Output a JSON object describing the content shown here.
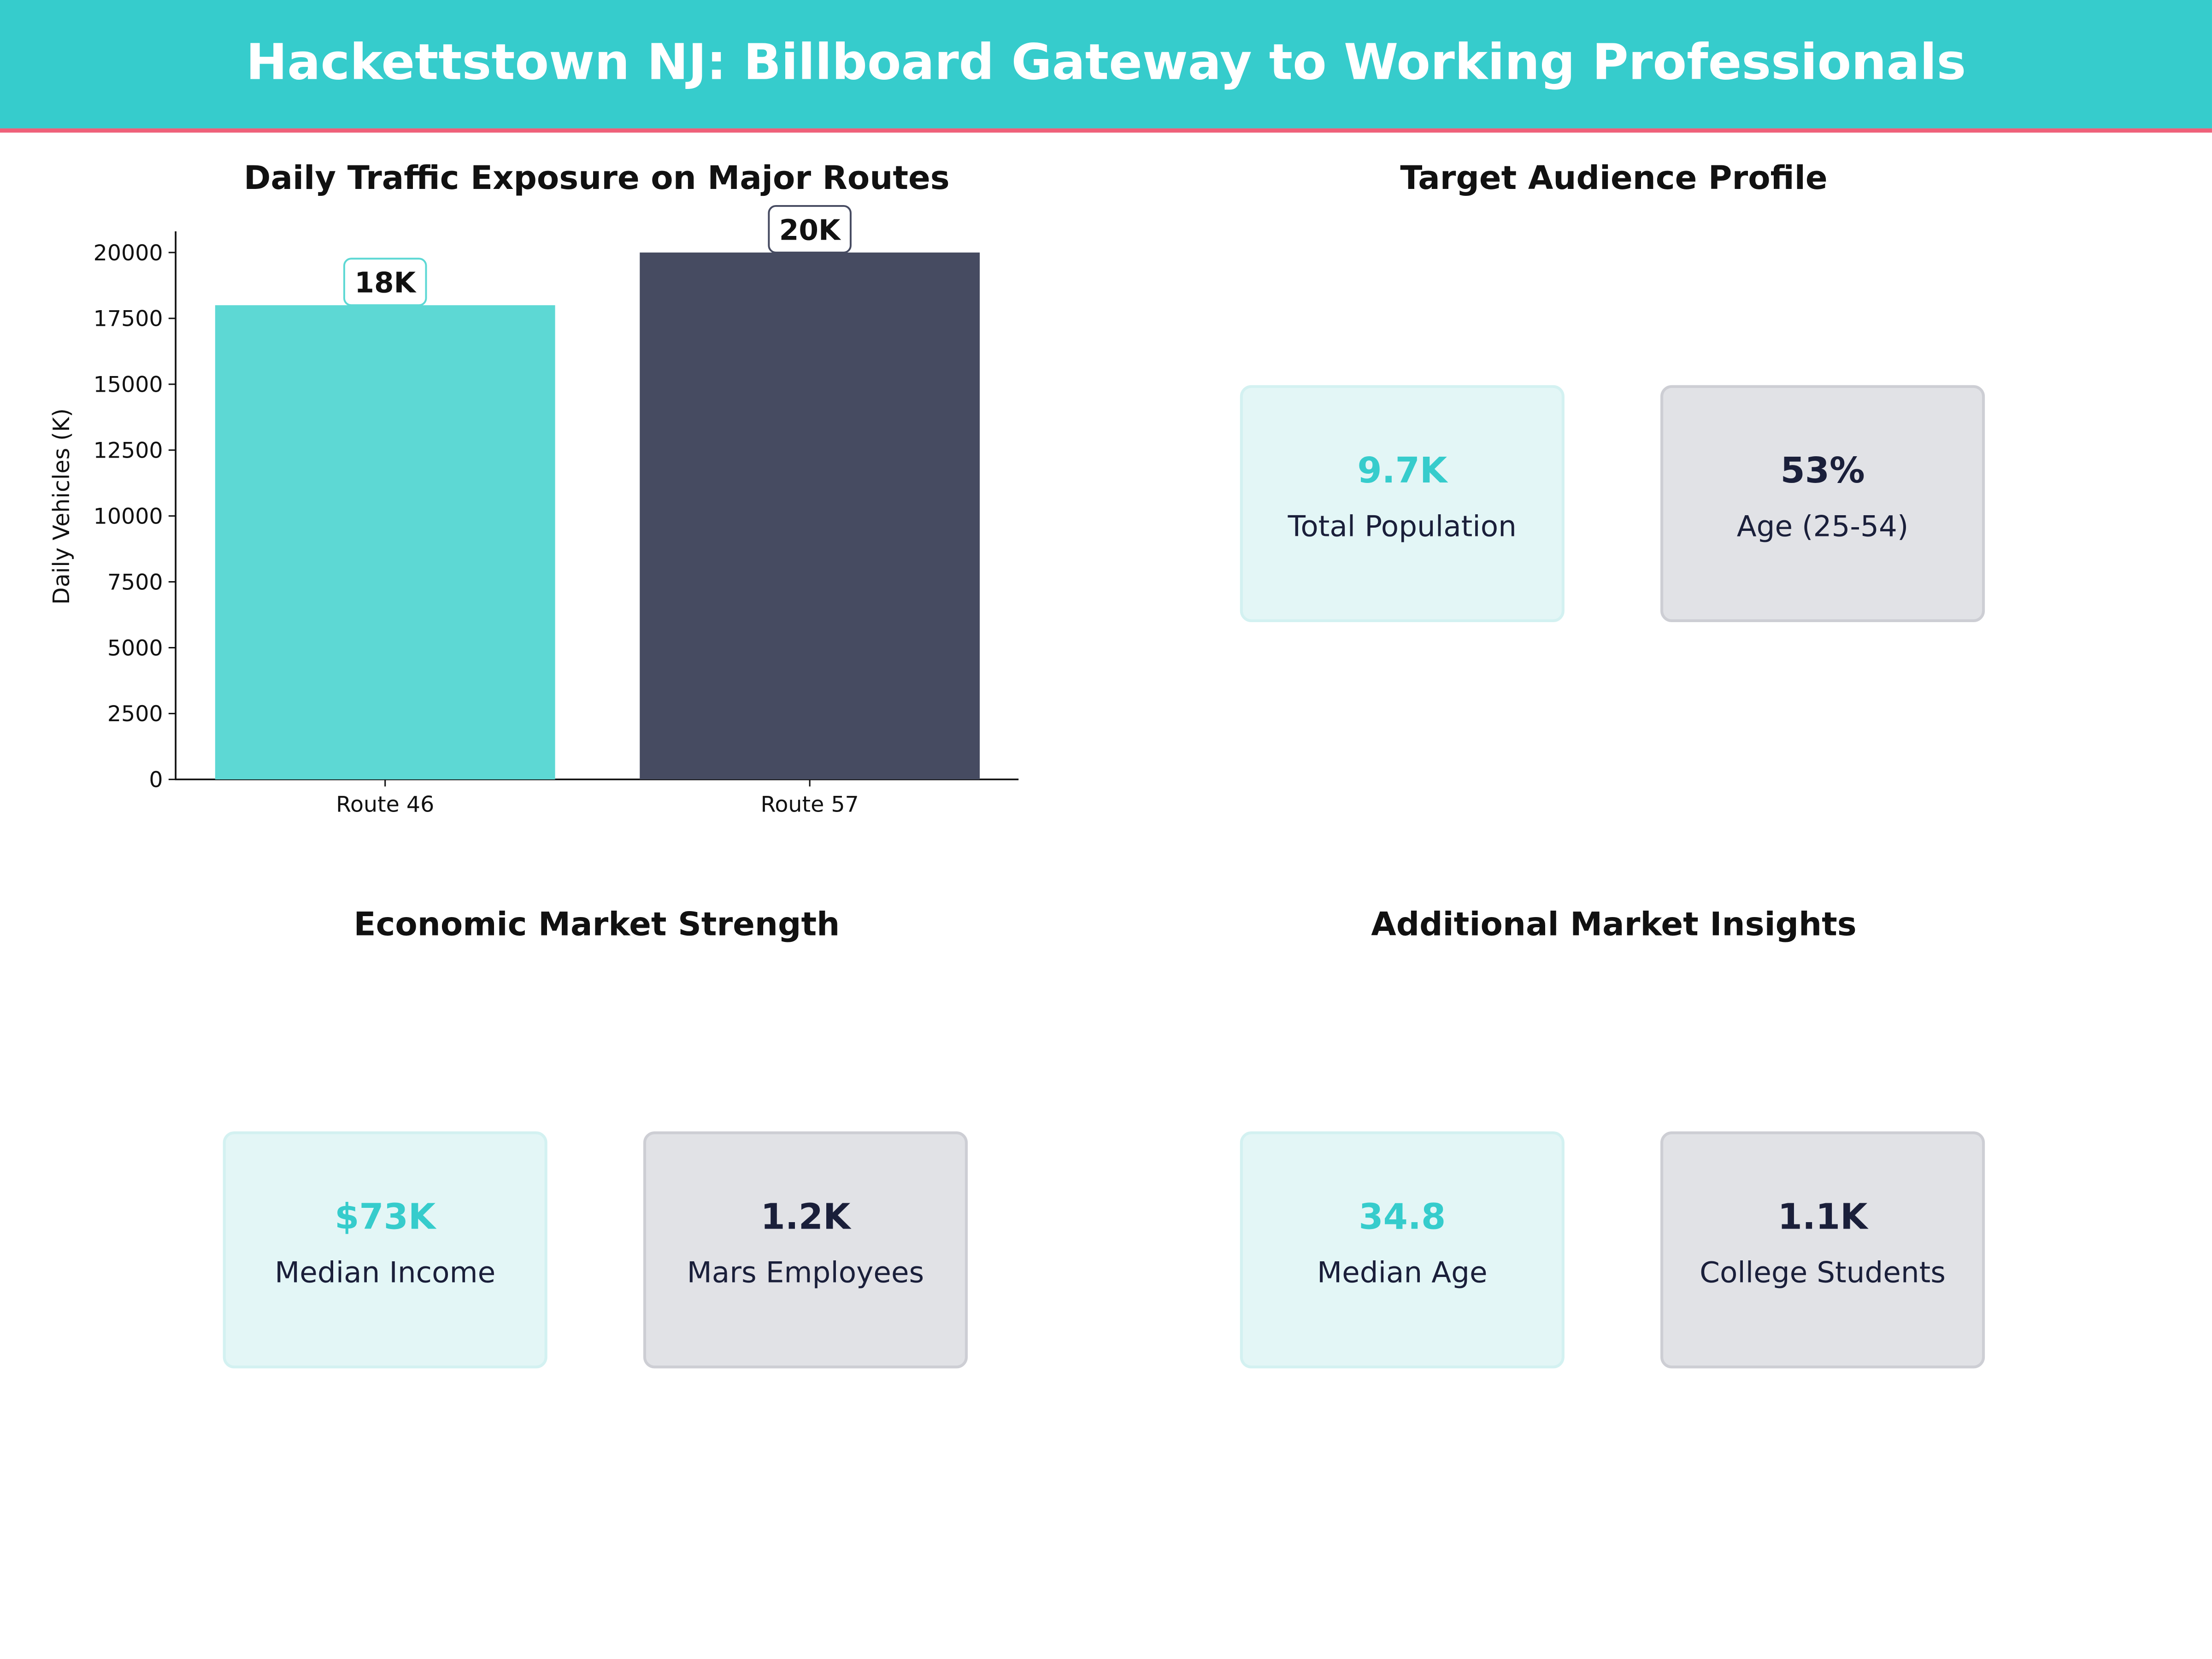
{
  "header": {
    "title": "Hackettstown NJ: Billboard Gateway to Working Professionals"
  },
  "colors": {
    "accent_teal": "#36cccc",
    "bar_teal": "#5dd8d4",
    "bar_navy": "#464b61",
    "accent_pink": "#ef6079",
    "text_navy": "#1a1f3a",
    "card_teal_bg": "#e3f6f6",
    "card_navy_bg": "#e1e2e6"
  },
  "panels": {
    "traffic": {
      "title": "Daily Traffic Exposure on Major Routes"
    },
    "audience": {
      "title": "Target Audience Profile",
      "cards": [
        {
          "value": "9.7K",
          "label": "Total Population"
        },
        {
          "value": "53%",
          "label": "Age (25-54)"
        }
      ]
    },
    "economic": {
      "title": "Economic Market Strength",
      "cards": [
        {
          "value": "$73K",
          "label": "Median Income"
        },
        {
          "value": "1.2K",
          "label": "Mars Employees"
        }
      ]
    },
    "insights": {
      "title": "Additional Market Insights",
      "cards": [
        {
          "value": "34.8",
          "label": "Median Age"
        },
        {
          "value": "1.1K",
          "label": "College Students"
        }
      ]
    }
  },
  "chart_data": {
    "type": "bar",
    "title": "Daily Traffic Exposure on Major Routes",
    "categories": [
      "Route 46",
      "Route 57"
    ],
    "values": [
      18000,
      20000
    ],
    "data_labels": [
      "18K",
      "20K"
    ],
    "xlabel": "",
    "ylabel": "Daily Vehicles (K)",
    "ylim": [
      0,
      20750
    ],
    "yticks": [
      0,
      2500,
      5000,
      7500,
      10000,
      12500,
      15000,
      17500,
      20000
    ],
    "ytick_labels": [
      "0",
      "2500",
      "5000",
      "7500",
      "10000",
      "12500",
      "15000",
      "17500",
      "20000"
    ],
    "grid": false,
    "legend": "none",
    "bar_colors": [
      "#5dd8d4",
      "#464b61"
    ]
  }
}
